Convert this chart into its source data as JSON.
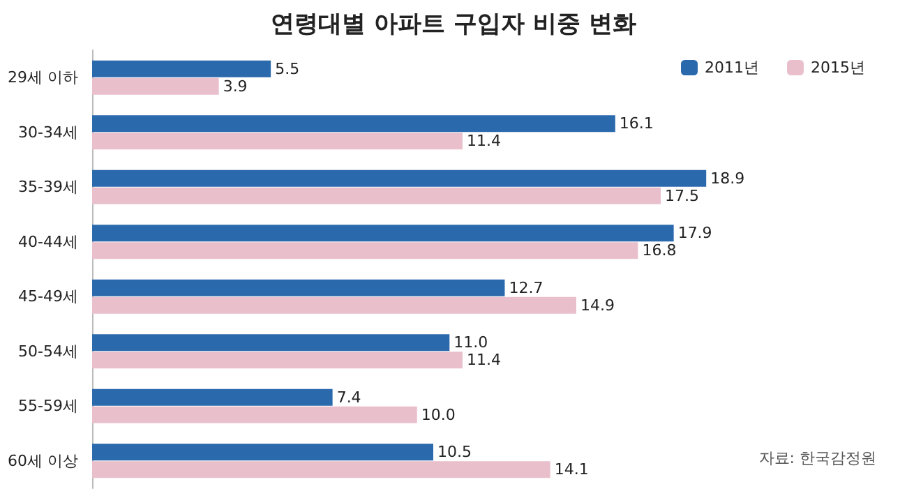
{
  "chart_data": {
    "type": "bar",
    "orientation": "horizontal",
    "title": "연령대별 아파트 구입자 비중 변화",
    "categories": [
      "29세 이하",
      "30-34세",
      "35-39세",
      "40-44세",
      "45-49세",
      "50-54세",
      "55-59세",
      "60세 이상"
    ],
    "series": [
      {
        "name": "2011년",
        "color": "#2a69ac",
        "values": [
          5.5,
          16.1,
          18.9,
          17.9,
          12.7,
          11.0,
          7.4,
          10.5
        ],
        "value_labels": [
          "5.5",
          "16.1",
          "18.9",
          "17.9",
          "12.7",
          "11.0",
          "7.4",
          "10.5"
        ]
      },
      {
        "name": "2015년",
        "color": "#e9bfcc",
        "values": [
          3.9,
          11.4,
          17.5,
          16.8,
          14.9,
          11.4,
          10.0,
          14.1
        ],
        "value_labels": [
          "3.9",
          "11.4",
          "17.5",
          "16.8",
          "14.9",
          "11.4",
          "10.0",
          "14.1"
        ]
      }
    ],
    "legend": "top right",
    "grid": false,
    "annotations": [
      "자료: 한국감정원"
    ]
  }
}
